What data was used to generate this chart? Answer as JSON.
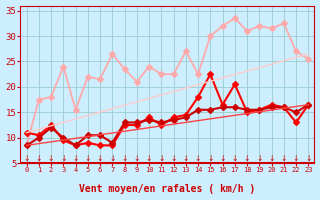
{
  "background_color": "#cceeff",
  "grid_color": "#99cccc",
  "x_label": "Vent moyen/en rafales ( km/h )",
  "x_min": -0.5,
  "x_max": 23.5,
  "y_min": 5,
  "y_max": 36,
  "yticks": [
    5,
    10,
    15,
    20,
    25,
    30,
    35
  ],
  "xticks": [
    0,
    1,
    2,
    3,
    4,
    5,
    6,
    7,
    8,
    9,
    10,
    11,
    12,
    13,
    14,
    15,
    16,
    17,
    18,
    19,
    20,
    21,
    22,
    23
  ],
  "series": [
    {
      "x": [
        0,
        1,
        2,
        3,
        4,
        5,
        6,
        7,
        8,
        9,
        10,
        11,
        12,
        13,
        14,
        15,
        16,
        17,
        18,
        19,
        20,
        21,
        22,
        23
      ],
      "y": [
        8.5,
        17.5,
        18,
        24,
        15.5,
        22,
        21.5,
        26.5,
        23.5,
        21,
        24,
        22.5,
        22.5,
        27,
        22.5,
        30,
        32,
        33.5,
        31,
        32,
        31.5,
        32.5,
        27,
        25.5
      ],
      "color": "#ffaaaa",
      "lw": 1.3,
      "marker": "D",
      "ms": 3.0
    },
    {
      "x": [
        0,
        1,
        2,
        3,
        4,
        5,
        6,
        7,
        8,
        9,
        10,
        11,
        12,
        13,
        14,
        15,
        16,
        17,
        18,
        19,
        20,
        21,
        22,
        23
      ],
      "y": [
        11,
        10.5,
        12.5,
        9.5,
        8.5,
        9,
        8.5,
        8.5,
        12.5,
        12.5,
        14,
        12.5,
        14,
        14.5,
        18,
        22.5,
        16.5,
        20.5,
        15,
        15.5,
        16.5,
        16,
        13,
        16.5
      ],
      "color": "#ff0000",
      "lw": 1.5,
      "marker": "D",
      "ms": 3.0
    },
    {
      "x": [
        0,
        1,
        2,
        3,
        4,
        5,
        6,
        7,
        8,
        9,
        10,
        11,
        12,
        13,
        14,
        15,
        16,
        17,
        18,
        19,
        20,
        21,
        22,
        23
      ],
      "y": [
        8.5,
        10,
        12,
        10,
        8.5,
        10.5,
        10.5,
        9,
        13,
        13,
        13.5,
        13,
        13.5,
        14,
        15.5,
        15.5,
        16,
        16,
        15.5,
        15.5,
        16,
        16,
        15,
        16.5
      ],
      "color": "#cc0000",
      "lw": 1.5,
      "marker": "D",
      "ms": 3.0
    },
    {
      "x": [
        0,
        23
      ],
      "y": [
        8.5,
        16.5
      ],
      "color": "#ff4444",
      "lw": 1.0,
      "marker": null,
      "ms": 0
    },
    {
      "x": [
        0,
        23
      ],
      "y": [
        11,
        26.5
      ],
      "color": "#ffcccc",
      "lw": 1.0,
      "marker": null,
      "ms": 0
    }
  ],
  "arrow_color": "#cc0000",
  "tick_label_color": "#cc0000",
  "xlabel_color": "#cc0000",
  "tick_color": "#cc0000"
}
